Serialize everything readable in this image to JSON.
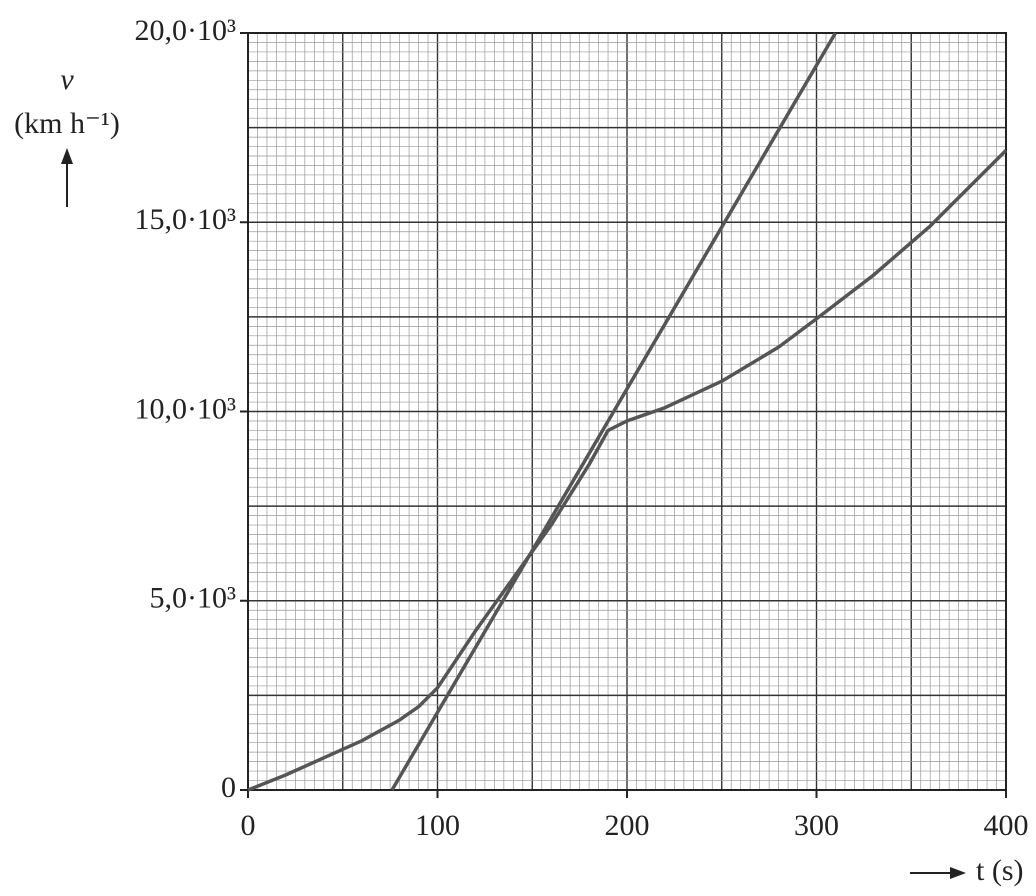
{
  "chart_data": {
    "type": "line",
    "xlabel": "t (s)",
    "ylabel_symbol": "v",
    "ylabel_unit": "(km h⁻¹)",
    "xlim": [
      0,
      400
    ],
    "ylim": [
      0,
      20000
    ],
    "xticks": [
      0,
      100,
      200,
      300,
      400
    ],
    "yticks": [
      0,
      {
        "value": 5000,
        "label": "5,0·10³"
      },
      {
        "value": 10000,
        "label": "10,0·10³"
      },
      {
        "value": 15000,
        "label": "15,0·10³"
      },
      {
        "value": 20000,
        "label": "20,0·10³"
      }
    ],
    "grid": true,
    "x_minor_step": 5,
    "y_minor_step": 250,
    "x_major_step": 50,
    "y_major_step": 2500,
    "series": [
      {
        "color": "#555555",
        "x": [
          0,
          20,
          40,
          60,
          80,
          90,
          100,
          120,
          140,
          160,
          180,
          190,
          200,
          220,
          250,
          280,
          300,
          330,
          360,
          400
        ],
        "values": [
          0,
          400,
          850,
          1300,
          1850,
          2200,
          2700,
          4200,
          5600,
          7000,
          8600,
          9500,
          9750,
          10100,
          10800,
          11700,
          12450,
          13600,
          14900,
          16900
        ]
      },
      {
        "color": "#555555",
        "x": [
          76,
          310
        ],
        "values": [
          0,
          20000
        ]
      }
    ]
  }
}
